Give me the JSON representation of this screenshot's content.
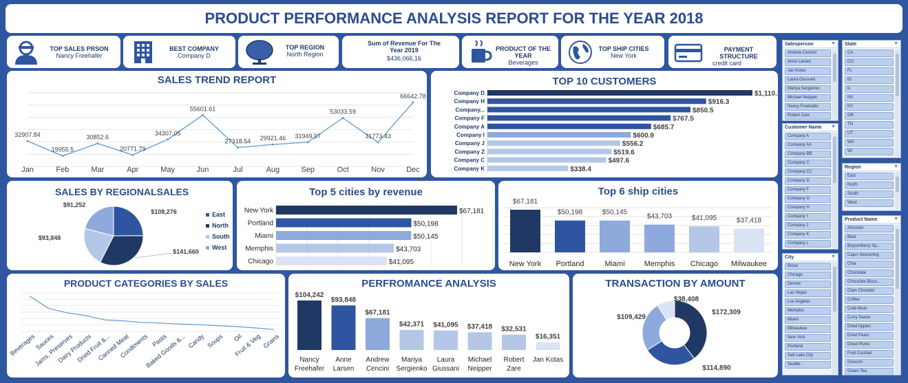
{
  "title": "PRODUCT PERFORMANCE ANALYSIS REPORT FOR THE YEAR 2018",
  "kpis": {
    "top_sales_person": {
      "label": "TOP SALES PRSON",
      "value": "Nancy Freehafer"
    },
    "best_company": {
      "label": "BEST COMPANY",
      "value": "Company  D"
    },
    "top_region": {
      "label": "TOP REGION",
      "value": "North Region"
    },
    "revenue": {
      "label": "Sum of Revenue For The Year 2019",
      "value": "$436,066,16"
    },
    "product_of_year": {
      "label": "PRODUCT OF THE YEAR",
      "value": "Beverages"
    },
    "top_ship_cities": {
      "label": "TOP SHIP CITIES",
      "value": "New York"
    },
    "payment": {
      "label": "PAYMENT STRUCTURE",
      "value": "credit card"
    }
  },
  "colors": {
    "dark": "#203864",
    "mid": "#2f55a0",
    "light": "#8ea9db",
    "pale": "#b4c7e7",
    "paler": "#dae3f3",
    "line": "#5b9bd5"
  },
  "chart_data": [
    {
      "type": "line",
      "title": "SALES TREND REPORT",
      "categories": [
        "Jan",
        "Feb",
        "Mar",
        "Apr",
        "May",
        "Jun",
        "Jul",
        "Aug",
        "Sep",
        "Oct",
        "Nov",
        "Dec"
      ],
      "values": [
        32907.84,
        19955.5,
        30852.6,
        20771.79,
        34307.05,
        55601.61,
        27318.54,
        29921.46,
        31949.97,
        53033.59,
        31773.43,
        66642.78
      ],
      "labels": [
        "32907.84",
        "19955.5",
        "30852.6",
        "20771.79",
        "34307.05",
        "55601.61",
        "27318.54",
        "29921.46",
        "31949.97",
        "53033.59",
        "31773.43",
        "66642.78"
      ],
      "ylim": [
        0,
        75000
      ],
      "grid": true
    },
    {
      "type": "bar",
      "orientation": "horizontal",
      "title": "TOP 10 CUSTOMERS",
      "categories": [
        "Company D",
        "Company H",
        "Company...",
        "Company F",
        "Company A",
        "Company I",
        "Company J",
        "Company Z",
        "Company C",
        "Company K"
      ],
      "values": [
        1110.1,
        916.3,
        850.5,
        767.5,
        685.7,
        600.9,
        556.2,
        519.6,
        497.6,
        338.4
      ],
      "labels": [
        "$1,110.1",
        "$916.3",
        "$850.5",
        "$767.5",
        "$685.7",
        "$600.9",
        "$556.2",
        "$519.6",
        "$497.6",
        "$338.4"
      ]
    },
    {
      "type": "pie",
      "title": "SALES BY REGIONALSALES",
      "categories": [
        "East",
        "North",
        "South",
        "West"
      ],
      "values": [
        108276,
        141660,
        93848,
        91252
      ],
      "labels": [
        "$108,276",
        "$141,660",
        "$93,848",
        "$91,252"
      ],
      "legend": "right"
    },
    {
      "type": "bar",
      "orientation": "horizontal",
      "title": "Top 5 cities by revenue",
      "categories": [
        "New York",
        "Portland",
        "Miami",
        "Memphis",
        "Chicago"
      ],
      "values": [
        67181,
        50198,
        50145,
        43703,
        41095
      ],
      "labels": [
        "$67,181",
        "$50,198",
        "$50,145",
        "$43,703",
        "$41,095"
      ]
    },
    {
      "type": "bar",
      "title": "Top 6 ship cities",
      "categories": [
        "New York",
        "Portland",
        "Miami",
        "Memphis",
        "Chicago",
        "Milwaukee"
      ],
      "values": [
        67181,
        50198,
        50145,
        43703,
        41095,
        37418
      ],
      "labels": [
        "$67,181",
        "$50,198",
        "$50,145",
        "$43,703",
        "$41,095",
        "$37,418"
      ]
    },
    {
      "type": "line",
      "title": "PRODUCT CATEGORIES BY SALES",
      "categories": [
        "Beverages",
        "Sauces",
        "Jams, Preserves",
        "Dairy Products",
        "Dried Fruit &...",
        "Canned Meat",
        "Condiments",
        "Pasta",
        "Baked Goods &...",
        "Candy",
        "Soups",
        "Oil",
        "Fruit & Veg",
        "Grains"
      ],
      "values": [
        110000,
        72000,
        58000,
        49000,
        36000,
        33000,
        28000,
        26000,
        23000,
        21000,
        18000,
        15000,
        11000,
        6000
      ],
      "ylim": [
        0,
        120000
      ],
      "grid": true
    },
    {
      "type": "bar",
      "title": "PERFROMANCE ANALYSIS",
      "categories": [
        "Nancy Freehafer",
        "Anne Larsen",
        "Andrew Cencini",
        "Mariya Sergienko",
        "Laura Giussani",
        "Michael Neipper",
        "Robert Zare",
        "Jan Kotas"
      ],
      "category_lines": [
        [
          "Nancy",
          "Freehafer"
        ],
        [
          "Anne",
          "Larsen"
        ],
        [
          "Andrew",
          "Cencini"
        ],
        [
          "Mariya",
          "Sergienko"
        ],
        [
          "Laura",
          "Giussani"
        ],
        [
          "Michael",
          "Neipper"
        ],
        [
          "Robert",
          "Zare"
        ],
        [
          "Jan Kotas"
        ]
      ],
      "values": [
        104242,
        93848,
        67181,
        42371,
        41095,
        37418,
        32531,
        16351
      ],
      "labels": [
        "$104,242",
        "$93,848",
        "$67,181",
        "$42,371",
        "$41,095",
        "$37,418",
        "$32,531",
        "$16,351"
      ]
    },
    {
      "type": "pie",
      "donut": true,
      "title": "TRANSACTION BY AMOUNT",
      "values": [
        172309,
        114890,
        109429,
        38408
      ],
      "labels": [
        "$172,309",
        "$114,890",
        "$109,429",
        "$38,408"
      ]
    }
  ],
  "slicers": {
    "salesperson": {
      "header": "Salesperson",
      "items": [
        "Andrew Cencini",
        "Anne Larsen",
        "Jan Kotas",
        "Laura Giussani",
        "Mariya Sergienko",
        "Michael Neipper",
        "Nancy Freehafer",
        "Robert Zare"
      ]
    },
    "state": {
      "header": "State",
      "items": [
        "CA",
        "CO",
        "FL",
        "ID",
        "IL",
        "NV",
        "NY",
        "OR",
        "TN",
        "UT",
        "WA",
        "WI"
      ]
    },
    "customer": {
      "header": "Customer Name",
      "items": [
        "Company A",
        "Company AA",
        "Company BB",
        "Company C",
        "Company CC",
        "Company D",
        "Company F",
        "Company G",
        "Company H",
        "Company I",
        "Company J",
        "Company K",
        "Company L"
      ]
    },
    "region": {
      "header": "Region",
      "items": [
        "East",
        "North",
        "South",
        "West"
      ]
    },
    "city": {
      "header": "City",
      "items": [
        "Boise",
        "Chicago",
        "Denver",
        "Las Vegas",
        "Los Angelas",
        "Memphis",
        "Miami",
        "Milwaukee",
        "New York",
        "Portland",
        "Salt Lake City",
        "Seattle"
      ]
    },
    "product": {
      "header": "Product Name",
      "items": [
        "Almonds",
        "Beer",
        "Boysenberry Sp...",
        "Cajun Seasoning",
        "Chai",
        "Chocolate",
        "Chocolate Biscu...",
        "Clam Chowder",
        "Coffee",
        "Crab Meat",
        "Curry Sauce",
        "Dried Apples",
        "Dried Pears",
        "Dried Plums",
        "Fruit Cocktail",
        "Gnocchi",
        "Green Tea"
      ]
    }
  }
}
